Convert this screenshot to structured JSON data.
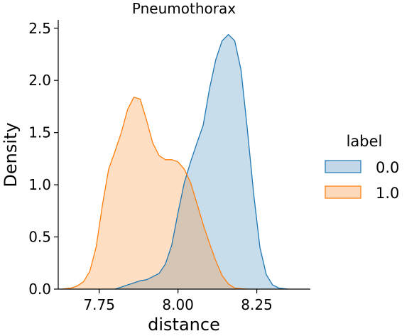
{
  "chart_data": {
    "type": "area",
    "title": "Pneumothorax",
    "xlabel": "distance",
    "ylabel": "Density",
    "xlim": [
      7.62,
      8.42
    ],
    "ylim": [
      0,
      2.58
    ],
    "xticks": [
      "7.75",
      "8.00",
      "8.25"
    ],
    "yticks": [
      "0.0",
      "0.5",
      "1.0",
      "1.5",
      "2.0",
      "2.5"
    ],
    "grid": false,
    "legend": {
      "title": "label",
      "placement": "right"
    },
    "series": [
      {
        "name": "0.0",
        "color": "#1f77b4",
        "fill": "#c3d7ea",
        "points": [
          [
            7.8,
            0.0
          ],
          [
            7.82,
            0.02
          ],
          [
            7.84,
            0.04
          ],
          [
            7.86,
            0.06
          ],
          [
            7.88,
            0.08
          ],
          [
            7.9,
            0.09
          ],
          [
            7.92,
            0.12
          ],
          [
            7.94,
            0.15
          ],
          [
            7.96,
            0.24
          ],
          [
            7.98,
            0.42
          ],
          [
            8.0,
            0.73
          ],
          [
            8.02,
            1.02
          ],
          [
            8.04,
            1.22
          ],
          [
            8.06,
            1.4
          ],
          [
            8.08,
            1.57
          ],
          [
            8.1,
            1.92
          ],
          [
            8.12,
            2.2
          ],
          [
            8.14,
            2.38
          ],
          [
            8.16,
            2.44
          ],
          [
            8.18,
            2.38
          ],
          [
            8.2,
            2.1
          ],
          [
            8.22,
            1.53
          ],
          [
            8.24,
            0.92
          ],
          [
            8.26,
            0.4
          ],
          [
            8.28,
            0.14
          ],
          [
            8.3,
            0.04
          ],
          [
            8.32,
            0.01
          ],
          [
            8.35,
            0.0
          ]
        ]
      },
      {
        "name": "1.0",
        "color": "#ff7f0e",
        "fill": "#fdd9bb",
        "points": [
          [
            7.63,
            0.0
          ],
          [
            7.66,
            0.01
          ],
          [
            7.68,
            0.03
          ],
          [
            7.7,
            0.07
          ],
          [
            7.72,
            0.17
          ],
          [
            7.74,
            0.4
          ],
          [
            7.76,
            0.8
          ],
          [
            7.78,
            1.15
          ],
          [
            7.8,
            1.32
          ],
          [
            7.82,
            1.5
          ],
          [
            7.84,
            1.72
          ],
          [
            7.86,
            1.84
          ],
          [
            7.88,
            1.82
          ],
          [
            7.9,
            1.62
          ],
          [
            7.92,
            1.4
          ],
          [
            7.94,
            1.28
          ],
          [
            7.96,
            1.24
          ],
          [
            7.98,
            1.24
          ],
          [
            8.0,
            1.22
          ],
          [
            8.02,
            1.15
          ],
          [
            8.04,
            1.02
          ],
          [
            8.06,
            0.82
          ],
          [
            8.08,
            0.62
          ],
          [
            8.1,
            0.44
          ],
          [
            8.12,
            0.27
          ],
          [
            8.14,
            0.13
          ],
          [
            8.16,
            0.05
          ],
          [
            8.18,
            0.01
          ],
          [
            8.22,
            0.0
          ]
        ]
      }
    ]
  }
}
